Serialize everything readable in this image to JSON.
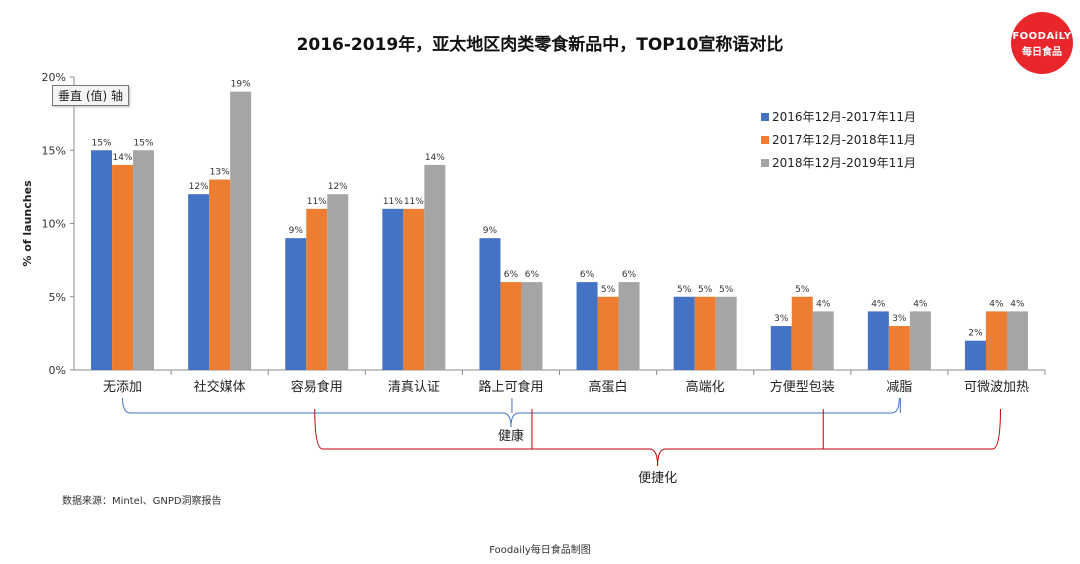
{
  "title": "2016-2019年，亚太地区肉类零食新品中，TOP10宣称语对比",
  "logo": {
    "line1": "FOODAiLY",
    "line2": "每日食品"
  },
  "tooltip": "垂直 (值) 轴",
  "source": "数据来源：Mintel、GNPD洞察报告",
  "footer": "Foodaily每日食品制图",
  "colors": {
    "series1": "#4472c4",
    "series2": "#ed7d31",
    "series3": "#a5a5a5",
    "health_bracket": "#4472c4",
    "convenience_bracket": "#c00000"
  },
  "chart_data": {
    "type": "bar",
    "title": "2016-2019年，亚太地区肉类零食新品中，TOP10宣称语对比",
    "xlabel": "",
    "ylabel": "% of launches",
    "ylim": [
      0,
      20
    ],
    "yticks": [
      "0%",
      "5%",
      "10%",
      "15%",
      "20%"
    ],
    "grid": false,
    "legend_position": "top-right",
    "categories": [
      "无添加",
      "社交媒体",
      "容易食用",
      "清真认证",
      "路上可食用",
      "高蛋白",
      "高端化",
      "方便型包装",
      "减脂",
      "可微波加热"
    ],
    "series": [
      {
        "name": "2016年12月-2017年11月",
        "values": [
          15,
          12,
          9,
          11,
          9,
          6,
          5,
          3,
          4,
          2
        ]
      },
      {
        "name": "2017年12月-2018年11月",
        "values": [
          14,
          13,
          11,
          11,
          6,
          5,
          5,
          5,
          3,
          4
        ]
      },
      {
        "name": "2018年12月-2019年11月",
        "values": [
          15,
          19,
          12,
          14,
          6,
          6,
          5,
          4,
          4,
          4
        ]
      }
    ],
    "value_suffix": "%",
    "groupings": [
      {
        "label": "健康",
        "from": "无添加",
        "to": "减脂"
      },
      {
        "label": "便捷化",
        "from": "容易食用",
        "to": "可微波加热"
      }
    ]
  }
}
